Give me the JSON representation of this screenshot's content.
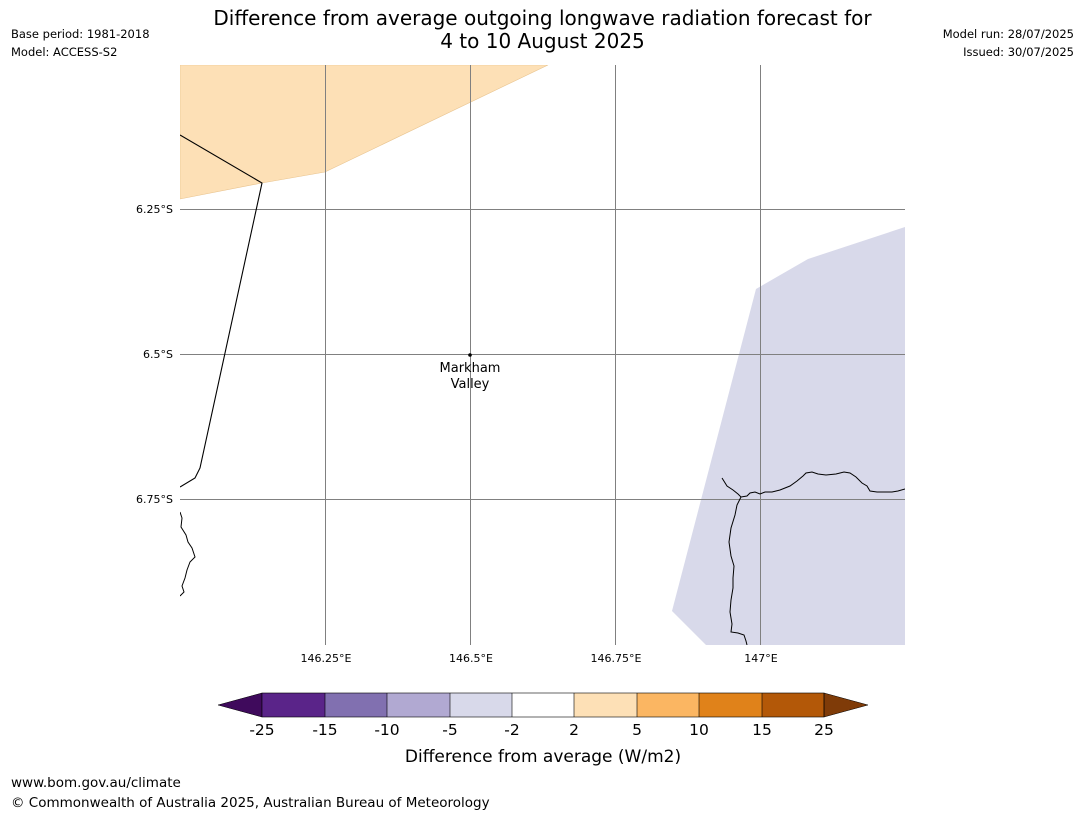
{
  "header": {
    "title_line1": "Difference from average outgoing longwave radiation forecast for",
    "title_line2": "4 to 10 August 2025",
    "base_period": "Base period: 1981-2018",
    "model": "Model: ACCESS-S2",
    "model_run": "Model run: 28/07/2025",
    "issued": "Issued: 30/07/2025"
  },
  "map": {
    "lat_labels": [
      "6.25°S",
      "6.5°S",
      "6.75°S"
    ],
    "lon_labels": [
      "146.25°E",
      "146.5°E",
      "146.75°E",
      "147°E"
    ],
    "place_label_line1": "Markham",
    "place_label_line2": "Valley",
    "colors": {
      "positive_2_5": "#fde0b6",
      "negative_2_5": "#d8d9ea",
      "gridline": "#808080",
      "coastline": "#000000"
    }
  },
  "colorbar": {
    "label": "Difference from average (W/m2)",
    "tick_labels": [
      "-25",
      "-15",
      "-10",
      "-5",
      "-2",
      "2",
      "5",
      "10",
      "15",
      "25"
    ],
    "colors": [
      "#3f0a5c",
      "#5a2489",
      "#8170b0",
      "#b1a9d2",
      "#d8d9ea",
      "#ffffff",
      "#fde0b6",
      "#fbb662",
      "#e0821a",
      "#b35808",
      "#7f3b08"
    ]
  },
  "footer": {
    "website": "www.bom.gov.au/climate",
    "copyright": "© Commonwealth of Australia 2025, Australian Bureau of Meteorology"
  }
}
